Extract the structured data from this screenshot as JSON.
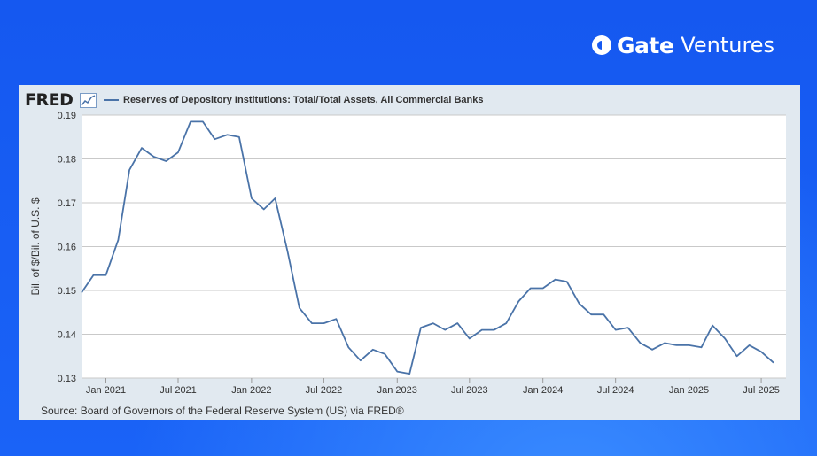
{
  "brand": {
    "name": "Gate",
    "suffix": "Ventures"
  },
  "fred": {
    "logo_text": "FRED"
  },
  "source": "Source: Board of Governors of the Federal Reserve System (US) via FRED®",
  "colors": {
    "background": "#1a5ff5",
    "card": "#e1e9f0",
    "plot_bg": "#ffffff",
    "line": "#4a73a8",
    "brand_text": "#ffffff"
  },
  "chart_data": {
    "type": "line",
    "title": "",
    "xlabel": "",
    "ylabel": "Bil. of $/Bil. of U.S. $",
    "ylim": [
      0.13,
      0.19
    ],
    "xlim": [
      "2020-11-01",
      "2025-09-01"
    ],
    "grid": true,
    "legend_position": "top-left",
    "y_ticks": [
      0.13,
      0.14,
      0.15,
      0.16,
      0.17,
      0.18,
      0.19
    ],
    "x_ticks": [
      {
        "label": "Jan 2021",
        "date": "2021-01-01"
      },
      {
        "label": "Jul 2021",
        "date": "2021-07-01"
      },
      {
        "label": "Jan 2022",
        "date": "2022-01-01"
      },
      {
        "label": "Jul 2022",
        "date": "2022-07-01"
      },
      {
        "label": "Jan 2023",
        "date": "2023-01-01"
      },
      {
        "label": "Jul 2023",
        "date": "2023-07-01"
      },
      {
        "label": "Jan 2024",
        "date": "2024-01-01"
      },
      {
        "label": "Jul 2024",
        "date": "2024-07-01"
      },
      {
        "label": "Jan 2025",
        "date": "2025-01-01"
      },
      {
        "label": "Jul 2025",
        "date": "2025-07-01"
      }
    ],
    "series": [
      {
        "name": "Reserves of Depository Institutions: Total/Total Assets, All Commercial Banks",
        "color": "#4a73a8",
        "x": [
          "2020-11-01",
          "2020-12-01",
          "2021-01-01",
          "2021-02-01",
          "2021-03-01",
          "2021-04-01",
          "2021-05-01",
          "2021-06-01",
          "2021-07-01",
          "2021-08-01",
          "2021-09-01",
          "2021-10-01",
          "2021-11-01",
          "2021-12-01",
          "2022-01-01",
          "2022-02-01",
          "2022-03-01",
          "2022-04-01",
          "2022-05-01",
          "2022-06-01",
          "2022-07-01",
          "2022-08-01",
          "2022-09-01",
          "2022-10-01",
          "2022-11-01",
          "2022-12-01",
          "2023-01-01",
          "2023-02-01",
          "2023-03-01",
          "2023-04-01",
          "2023-05-01",
          "2023-06-01",
          "2023-07-01",
          "2023-08-01",
          "2023-09-01",
          "2023-10-01",
          "2023-11-01",
          "2023-12-01",
          "2024-01-01",
          "2024-02-01",
          "2024-03-01",
          "2024-04-01",
          "2024-05-01",
          "2024-06-01",
          "2024-07-01",
          "2024-08-01",
          "2024-09-01",
          "2024-10-01",
          "2024-11-01",
          "2024-12-01",
          "2025-01-01",
          "2025-02-01",
          "2025-03-01",
          "2025-04-01",
          "2025-05-01",
          "2025-06-01",
          "2025-07-01",
          "2025-08-01"
        ],
        "values": [
          0.1495,
          0.1535,
          0.1535,
          0.1615,
          0.1775,
          0.1825,
          0.1805,
          0.1795,
          0.1815,
          0.1885,
          0.1885,
          0.1845,
          0.1855,
          0.185,
          0.171,
          0.1685,
          0.171,
          0.159,
          0.146,
          0.1425,
          0.1425,
          0.1435,
          0.137,
          0.134,
          0.1365,
          0.1355,
          0.1315,
          0.131,
          0.1415,
          0.1425,
          0.141,
          0.1425,
          0.139,
          0.141,
          0.141,
          0.1425,
          0.1475,
          0.1505,
          0.1505,
          0.1525,
          0.152,
          0.147,
          0.1445,
          0.1445,
          0.141,
          0.1415,
          0.138,
          0.1365,
          0.138,
          0.1375,
          0.1375,
          0.137,
          0.142,
          0.139,
          0.135,
          0.1375,
          0.136,
          0.1335
        ]
      }
    ]
  }
}
